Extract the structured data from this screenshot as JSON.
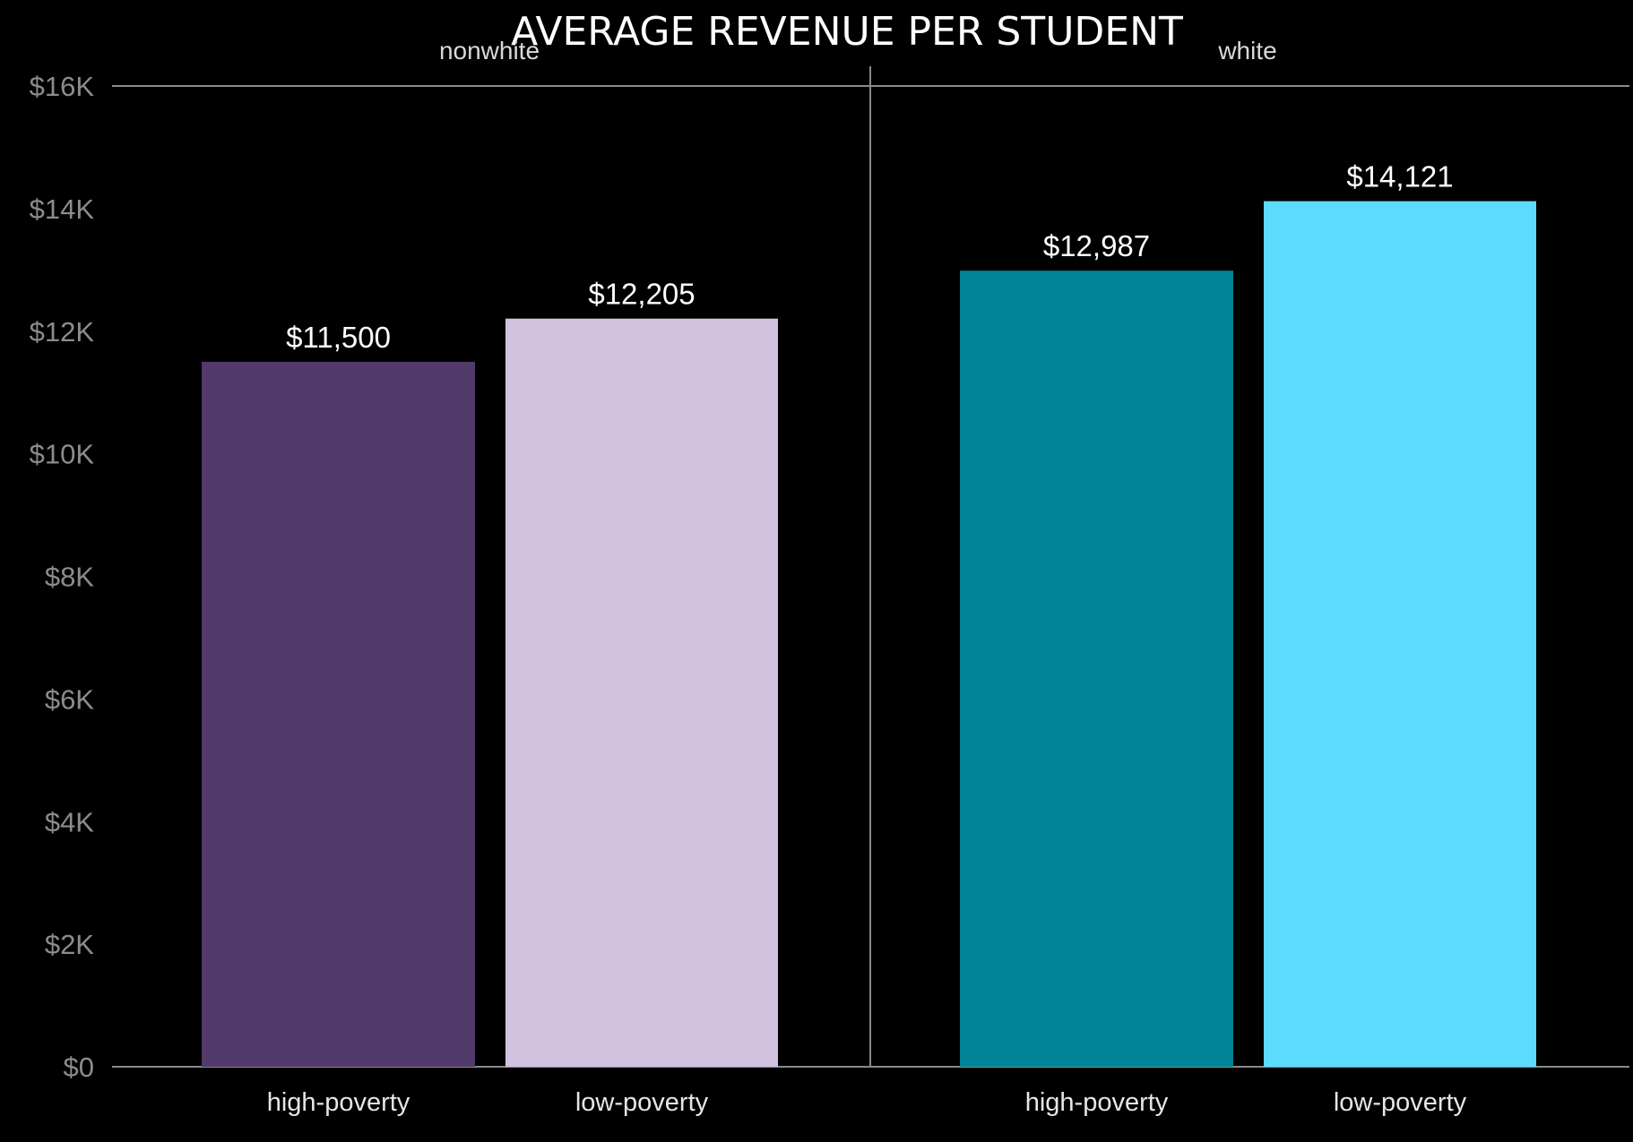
{
  "chart_data": {
    "type": "bar",
    "title": "AVERAGE REVENUE PER STUDENT",
    "xlabel": "",
    "ylabel": "",
    "ylim": [
      0,
      16000
    ],
    "yticks": [
      {
        "value": 0,
        "label": "$0"
      },
      {
        "value": 2000,
        "label": "$2K"
      },
      {
        "value": 4000,
        "label": "$4K"
      },
      {
        "value": 6000,
        "label": "$6K"
      },
      {
        "value": 8000,
        "label": "$8K"
      },
      {
        "value": 10000,
        "label": "$10K"
      },
      {
        "value": 12000,
        "label": "$12K"
      },
      {
        "value": 14000,
        "label": "$14K"
      },
      {
        "value": 16000,
        "label": "$16K"
      }
    ],
    "grid": false,
    "legend": "none",
    "facets": [
      {
        "name": "nonwhite",
        "categories": [
          "high-poverty",
          "low-poverty"
        ],
        "values": [
          11500,
          12205
        ],
        "value_labels": [
          "$11,500",
          "$12,205"
        ],
        "colors": [
          "#523a6b",
          "#d1c3e0"
        ]
      },
      {
        "name": "white",
        "categories": [
          "high-poverty",
          "low-poverty"
        ],
        "values": [
          12987,
          14121
        ],
        "value_labels": [
          "$12,987",
          "$14,121"
        ],
        "colors": [
          "#008396",
          "#5cdbff"
        ]
      }
    ]
  }
}
